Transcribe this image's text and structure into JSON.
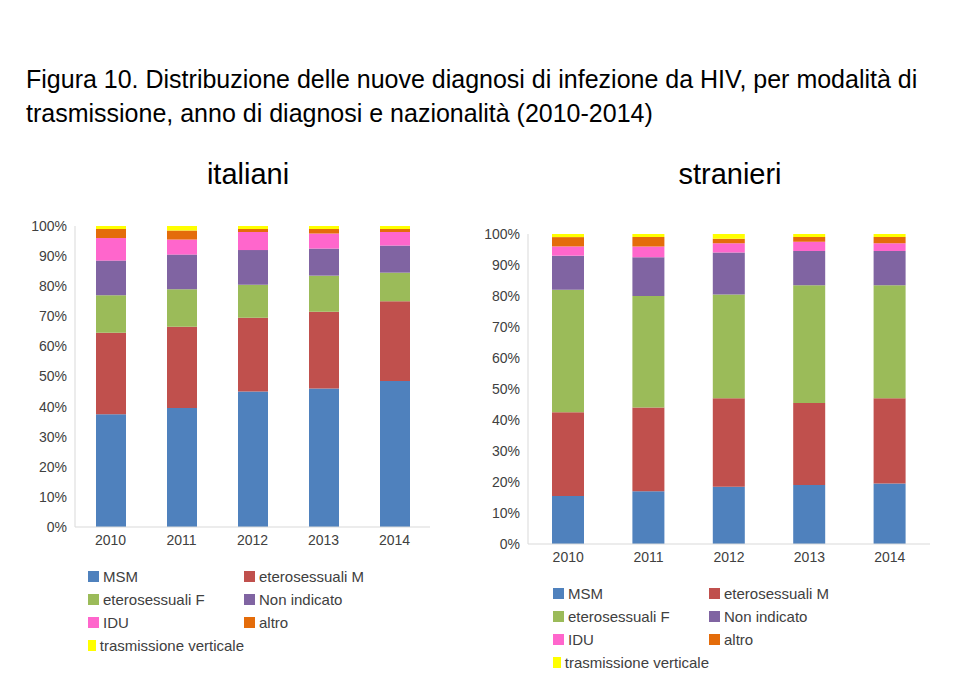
{
  "title": "Figura 10. Distribuzione delle nuove diagnosi di infezione da HIV, per modalità di trasmissione, anno di diagnosi e nazionalità (2010-2014)",
  "chart_data": [
    {
      "type": "bar",
      "title": "italiani",
      "stacked": true,
      "categories": [
        "2010",
        "2011",
        "2012",
        "2013",
        "2014"
      ],
      "ylim": [
        0,
        100
      ],
      "yticks": [
        {
          "value": 0,
          "label": "0%"
        },
        {
          "value": 10,
          "label": "10%"
        },
        {
          "value": 20,
          "label": "20%"
        },
        {
          "value": 30,
          "label": "30%"
        },
        {
          "value": 40,
          "label": "40%"
        },
        {
          "value": 50,
          "label": "50%"
        },
        {
          "value": 60,
          "label": "60%"
        },
        {
          "value": 70,
          "label": "70%"
        },
        {
          "value": 80,
          "label": "80%"
        },
        {
          "value": 90,
          "label": "90%"
        },
        {
          "value": 100,
          "label": "100%"
        }
      ],
      "series": [
        {
          "name": "MSM",
          "color": "#4f81bd",
          "values": [
            37.5,
            39.5,
            45,
            46,
            48.5
          ]
        },
        {
          "name": "eterosessuali M",
          "color": "#c0504d",
          "values": [
            27,
            27,
            24.5,
            25.5,
            26.5
          ]
        },
        {
          "name": "eterosessuali F",
          "color": "#9bbb59",
          "values": [
            12.5,
            12.5,
            11,
            12,
            9.5
          ]
        },
        {
          "name": "Non indicato",
          "color": "#8064a2",
          "values": [
            11.5,
            11.5,
            11.5,
            9,
            9
          ]
        },
        {
          "name": "IDU",
          "color": "#ff66cc",
          "values": [
            7.5,
            5,
            6,
            5,
            4.5
          ]
        },
        {
          "name": "altro",
          "color": "#e46c0a",
          "values": [
            3,
            3,
            1,
            1.5,
            1
          ]
        },
        {
          "name": "trasmissione verticale",
          "color": "#ffff00",
          "values": [
            1,
            1.5,
            1,
            1,
            1
          ]
        }
      ]
    },
    {
      "type": "bar",
      "title": "stranieri",
      "stacked": true,
      "categories": [
        "2010",
        "2011",
        "2012",
        "2013",
        "2014"
      ],
      "ylim": [
        0,
        100
      ],
      "yticks": [
        {
          "value": 0,
          "label": "0%"
        },
        {
          "value": 10,
          "label": "10%"
        },
        {
          "value": 20,
          "label": "20%"
        },
        {
          "value": 30,
          "label": "30%"
        },
        {
          "value": 40,
          "label": "40%"
        },
        {
          "value": 50,
          "label": "50%"
        },
        {
          "value": 60,
          "label": "60%"
        },
        {
          "value": 70,
          "label": "70%"
        },
        {
          "value": 80,
          "label": "80%"
        },
        {
          "value": 90,
          "label": "90%"
        },
        {
          "value": 100,
          "label": "100%"
        }
      ],
      "series": [
        {
          "name": "MSM",
          "color": "#4f81bd",
          "values": [
            15.5,
            17,
            18.5,
            19,
            19.5
          ]
        },
        {
          "name": "eterosessuali M",
          "color": "#c0504d",
          "values": [
            27,
            27,
            28.5,
            26.5,
            27.5
          ]
        },
        {
          "name": "eterosessuali F",
          "color": "#9bbb59",
          "values": [
            39.5,
            36,
            33.5,
            38,
            36.5
          ]
        },
        {
          "name": "Non indicato",
          "color": "#8064a2",
          "values": [
            11,
            12.5,
            13.5,
            11,
            11
          ]
        },
        {
          "name": "IDU",
          "color": "#ff66cc",
          "values": [
            3,
            3.5,
            3,
            3,
            2.5
          ]
        },
        {
          "name": "altro",
          "color": "#e46c0a",
          "values": [
            3,
            3,
            1.5,
            1.5,
            2
          ]
        },
        {
          "name": "trasmissione verticale",
          "color": "#ffff00",
          "values": [
            1,
            1,
            1.5,
            1,
            1
          ]
        }
      ]
    }
  ]
}
